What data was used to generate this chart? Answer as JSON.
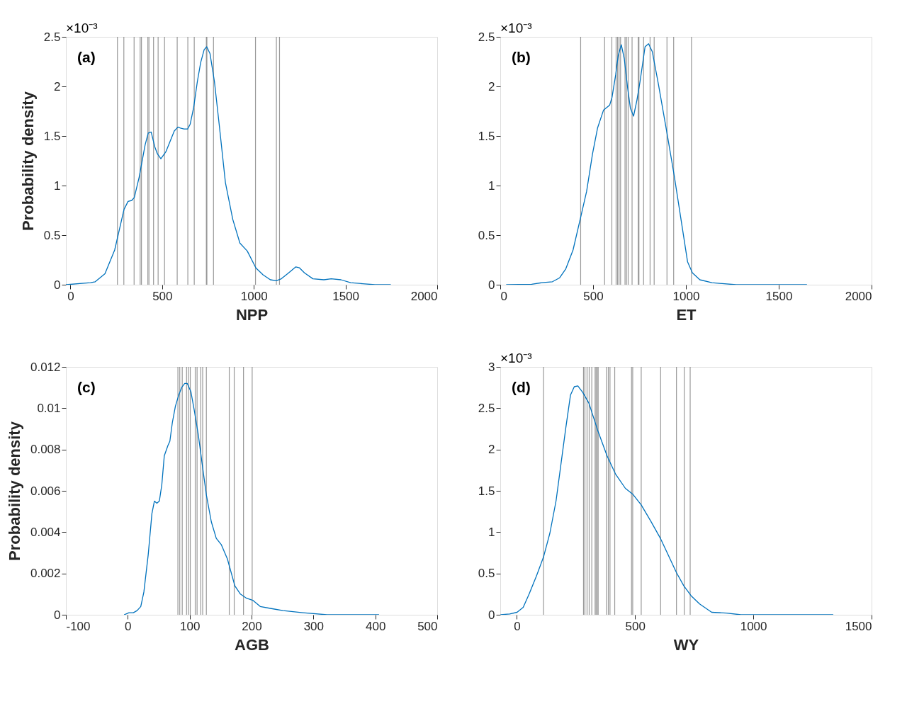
{
  "chart_data": [
    {
      "type": "line",
      "xlabel": "NPP",
      "ylabel": "Probability density",
      "annotations": [
        "(a)",
        "×10⁻³"
      ],
      "grid": false,
      "line_style": "solid",
      "marker": "none",
      "xlim": [
        -25,
        2000
      ],
      "xticks": [
        0,
        500,
        1000,
        1500,
        2000
      ],
      "ylim": [
        0,
        2.5
      ],
      "yticks": [
        0,
        0.5,
        1,
        1.5,
        2,
        2.5
      ],
      "series": [
        {
          "color": "#0072bd",
          "x": [
            -25,
            109,
            135,
            188,
            241,
            292,
            314,
            334,
            348,
            374,
            407,
            424,
            440,
            460,
            474,
            493,
            520,
            566,
            586,
            600,
            619,
            639,
            653,
            672,
            692,
            710,
            729,
            743,
            761,
            785,
            812,
            845,
            885,
            924,
            964,
            1011,
            1050,
            1090,
            1123,
            1150,
            1190,
            1229,
            1249,
            1276,
            1322,
            1382,
            1422,
            1475,
            1528,
            1594,
            1661,
            1747
          ],
          "values": [
            0,
            0.02,
            0.03,
            0.11,
            0.35,
            0.76,
            0.84,
            0.85,
            0.88,
            1.08,
            1.41,
            1.53,
            1.54,
            1.39,
            1.32,
            1.27,
            1.34,
            1.55,
            1.59,
            1.58,
            1.57,
            1.57,
            1.62,
            1.79,
            2.05,
            2.24,
            2.37,
            2.4,
            2.33,
            2.05,
            1.6,
            1.03,
            0.66,
            0.42,
            0.34,
            0.17,
            0.1,
            0.05,
            0.04,
            0.06,
            0.12,
            0.18,
            0.17,
            0.12,
            0.06,
            0.05,
            0.06,
            0.05,
            0.02,
            0.01,
            0,
            0
          ]
        }
      ],
      "ref_lines": [
        {
          "axis": "x",
          "value": 256,
          "color": "#808080"
        },
        {
          "axis": "x",
          "value": 291,
          "color": "#808080"
        },
        {
          "axis": "x",
          "value": 347,
          "color": "#808080"
        },
        {
          "axis": "x",
          "value": 380,
          "color": "#808080"
        },
        {
          "axis": "x",
          "value": 387,
          "color": "#808080"
        },
        {
          "axis": "x",
          "value": 422,
          "color": "#808080"
        },
        {
          "axis": "x",
          "value": 428,
          "color": "#808080"
        },
        {
          "axis": "x",
          "value": 453,
          "color": "#808080"
        },
        {
          "axis": "x",
          "value": 478,
          "color": "#808080"
        },
        {
          "axis": "x",
          "value": 513,
          "color": "#808080"
        },
        {
          "axis": "x",
          "value": 582,
          "color": "#808080"
        },
        {
          "axis": "x",
          "value": 640,
          "color": "#808080"
        },
        {
          "axis": "x",
          "value": 675,
          "color": "#808080"
        },
        {
          "axis": "x",
          "value": 741,
          "color": "#808080"
        },
        {
          "axis": "x",
          "value": 744,
          "color": "#808080"
        },
        {
          "axis": "x",
          "value": 780,
          "color": "#808080"
        },
        {
          "axis": "x",
          "value": 1009,
          "color": "#808080"
        },
        {
          "axis": "x",
          "value": 1123,
          "color": "#808080"
        },
        {
          "axis": "x",
          "value": 1140,
          "color": "#808080"
        }
      ]
    },
    {
      "type": "line",
      "xlabel": "ET",
      "annotations": [
        "(b)",
        "×10⁻³"
      ],
      "grid": false,
      "line_style": "solid",
      "marker": "none",
      "xlim": [
        0,
        2000
      ],
      "xticks": [
        0,
        500,
        1000,
        1500,
        2000
      ],
      "ylim": [
        0,
        2.5
      ],
      "yticks": [
        0,
        0.5,
        1,
        1.5,
        2,
        2.5
      ],
      "series": [
        {
          "color": "#0072bd",
          "x": [
            32,
            169,
            222,
            281,
            320,
            353,
            392,
            433,
            465,
            497,
            524,
            556,
            589,
            602,
            622,
            635,
            652,
            668,
            685,
            701,
            718,
            736,
            753,
            780,
            799,
            819,
            852,
            898,
            937,
            976,
            1009,
            1035,
            1075,
            1140,
            1271,
            1652
          ],
          "values": [
            0,
            0.005,
            0.02,
            0.03,
            0.07,
            0.16,
            0.35,
            0.68,
            0.94,
            1.32,
            1.58,
            1.76,
            1.81,
            1.89,
            2.12,
            2.31,
            2.42,
            2.28,
            2.0,
            1.78,
            1.7,
            1.86,
            2.05,
            2.4,
            2.43,
            2.35,
            2.02,
            1.53,
            1.1,
            0.63,
            0.23,
            0.12,
            0.05,
            0.02,
            0,
            0
          ]
        }
      ],
      "ref_lines": [
        {
          "axis": "x",
          "value": 433,
          "color": "#808080"
        },
        {
          "axis": "x",
          "value": 562,
          "color": "#808080"
        },
        {
          "axis": "x",
          "value": 601,
          "color": "#808080"
        },
        {
          "axis": "x",
          "value": 624,
          "color": "#808080"
        },
        {
          "axis": "x",
          "value": 632,
          "color": "#808080"
        },
        {
          "axis": "x",
          "value": 640,
          "color": "#808080"
        },
        {
          "axis": "x",
          "value": 648,
          "color": "#808080"
        },
        {
          "axis": "x",
          "value": 672,
          "color": "#808080"
        },
        {
          "axis": "x",
          "value": 680,
          "color": "#808080"
        },
        {
          "axis": "x",
          "value": 689,
          "color": "#808080"
        },
        {
          "axis": "x",
          "value": 710,
          "color": "#808080"
        },
        {
          "axis": "x",
          "value": 743,
          "color": "#808080"
        },
        {
          "axis": "x",
          "value": 747,
          "color": "#808080"
        },
        {
          "axis": "x",
          "value": 772,
          "color": "#808080"
        },
        {
          "axis": "x",
          "value": 807,
          "color": "#808080"
        },
        {
          "axis": "x",
          "value": 829,
          "color": "#808080"
        },
        {
          "axis": "x",
          "value": 898,
          "color": "#808080"
        },
        {
          "axis": "x",
          "value": 934,
          "color": "#808080"
        },
        {
          "axis": "x",
          "value": 1030,
          "color": "#808080"
        }
      ]
    },
    {
      "type": "line",
      "xlabel": "AGB",
      "ylabel": "Probability density",
      "annotations": [
        "(c)"
      ],
      "grid": false,
      "line_style": "solid",
      "marker": "none",
      "xlim": [
        -100,
        500
      ],
      "xticks": [
        -100,
        0,
        100,
        200,
        300,
        400,
        500
      ],
      "ylim": [
        0,
        0.012
      ],
      "yticks": [
        0,
        0.002,
        0.004,
        0.006,
        0.008,
        0.01,
        0.012
      ],
      "series": [
        {
          "color": "#0072bd",
          "x": [
            -6,
            2,
            9,
            15,
            21,
            26,
            33,
            39,
            43,
            47,
            51,
            55,
            59,
            65,
            68,
            72,
            77,
            82,
            87,
            92,
            96,
            102,
            108,
            114,
            122,
            127,
            135,
            143,
            151,
            161,
            173,
            182,
            192,
            202,
            214,
            232,
            251,
            283,
            322,
            406
          ],
          "values": [
            0,
            0.0001,
            0.0001,
            0.0002,
            0.0004,
            0.0011,
            0.0029,
            0.0049,
            0.0055,
            0.0054,
            0.0055,
            0.0063,
            0.0077,
            0.0082,
            0.0084,
            0.0093,
            0.0101,
            0.0106,
            0.011,
            0.0112,
            0.0112,
            0.0108,
            0.0098,
            0.0087,
            0.0069,
            0.0058,
            0.0045,
            0.0037,
            0.0034,
            0.0027,
            0.0014,
            0.001,
            0.0008,
            0.0007,
            0.0004,
            0.0003,
            0.0002,
            0.0001,
            0,
            0
          ]
        }
      ],
      "ref_lines": [
        {
          "axis": "x",
          "value": 81,
          "color": "#808080"
        },
        {
          "axis": "x",
          "value": 84,
          "color": "#808080"
        },
        {
          "axis": "x",
          "value": 88,
          "color": "#808080"
        },
        {
          "axis": "x",
          "value": 95,
          "color": "#808080"
        },
        {
          "axis": "x",
          "value": 98,
          "color": "#808080"
        },
        {
          "axis": "x",
          "value": 101,
          "color": "#808080"
        },
        {
          "axis": "x",
          "value": 109,
          "color": "#808080"
        },
        {
          "axis": "x",
          "value": 112,
          "color": "#808080"
        },
        {
          "axis": "x",
          "value": 118,
          "color": "#808080"
        },
        {
          "axis": "x",
          "value": 121,
          "color": "#808080"
        },
        {
          "axis": "x",
          "value": 127,
          "color": "#808080"
        },
        {
          "axis": "x",
          "value": 164,
          "color": "#808080"
        },
        {
          "axis": "x",
          "value": 172,
          "color": "#808080"
        },
        {
          "axis": "x",
          "value": 187,
          "color": "#808080"
        },
        {
          "axis": "x",
          "value": 201,
          "color": "#808080"
        }
      ]
    },
    {
      "type": "line",
      "xlabel": "WY",
      "annotations": [
        "(d)",
        "×10⁻³"
      ],
      "grid": false,
      "line_style": "solid",
      "marker": "none",
      "xlim": [
        -70,
        1500
      ],
      "xticks": [
        0,
        500,
        1000,
        1500
      ],
      "ylim": [
        0,
        3
      ],
      "yticks": [
        0,
        0.5,
        1,
        1.5,
        2,
        2.5,
        3
      ],
      "series": [
        {
          "color": "#0072bd",
          "x": [
            -69,
            -30,
            1,
            27,
            52,
            83,
            113,
            140,
            166,
            186,
            207,
            227,
            243,
            258,
            279,
            305,
            341,
            382,
            418,
            459,
            490,
            526,
            567,
            608,
            639,
            675,
            706,
            737,
            773,
            824,
            886,
            948,
            1030,
            1338
          ],
          "values": [
            0,
            0.01,
            0.03,
            0.09,
            0.25,
            0.47,
            0.7,
            0.99,
            1.38,
            1.81,
            2.26,
            2.66,
            2.76,
            2.77,
            2.69,
            2.56,
            2.24,
            1.92,
            1.7,
            1.53,
            1.46,
            1.33,
            1.13,
            0.92,
            0.73,
            0.51,
            0.35,
            0.23,
            0.13,
            0.03,
            0.02,
            0,
            0,
            0
          ]
        }
      ],
      "ref_lines": [
        {
          "axis": "x",
          "value": 113,
          "color": "#808080"
        },
        {
          "axis": "x",
          "value": 282,
          "color": "#808080"
        },
        {
          "axis": "x",
          "value": 288,
          "color": "#808080"
        },
        {
          "axis": "x",
          "value": 297,
          "color": "#808080"
        },
        {
          "axis": "x",
          "value": 306,
          "color": "#808080"
        },
        {
          "axis": "x",
          "value": 317,
          "color": "#808080"
        },
        {
          "axis": "x",
          "value": 331,
          "color": "#808080"
        },
        {
          "axis": "x",
          "value": 335,
          "color": "#808080"
        },
        {
          "axis": "x",
          "value": 340,
          "color": "#808080"
        },
        {
          "axis": "x",
          "value": 344,
          "color": "#808080"
        },
        {
          "axis": "x",
          "value": 379,
          "color": "#808080"
        },
        {
          "axis": "x",
          "value": 387,
          "color": "#808080"
        },
        {
          "axis": "x",
          "value": 394,
          "color": "#808080"
        },
        {
          "axis": "x",
          "value": 414,
          "color": "#808080"
        },
        {
          "axis": "x",
          "value": 485,
          "color": "#808080"
        },
        {
          "axis": "x",
          "value": 490,
          "color": "#808080"
        },
        {
          "axis": "x",
          "value": 526,
          "color": "#808080"
        },
        {
          "axis": "x",
          "value": 608,
          "color": "#808080"
        },
        {
          "axis": "x",
          "value": 675,
          "color": "#808080"
        },
        {
          "axis": "x",
          "value": 708,
          "color": "#808080"
        },
        {
          "axis": "x",
          "value": 733,
          "color": "#808080"
        }
      ]
    }
  ]
}
